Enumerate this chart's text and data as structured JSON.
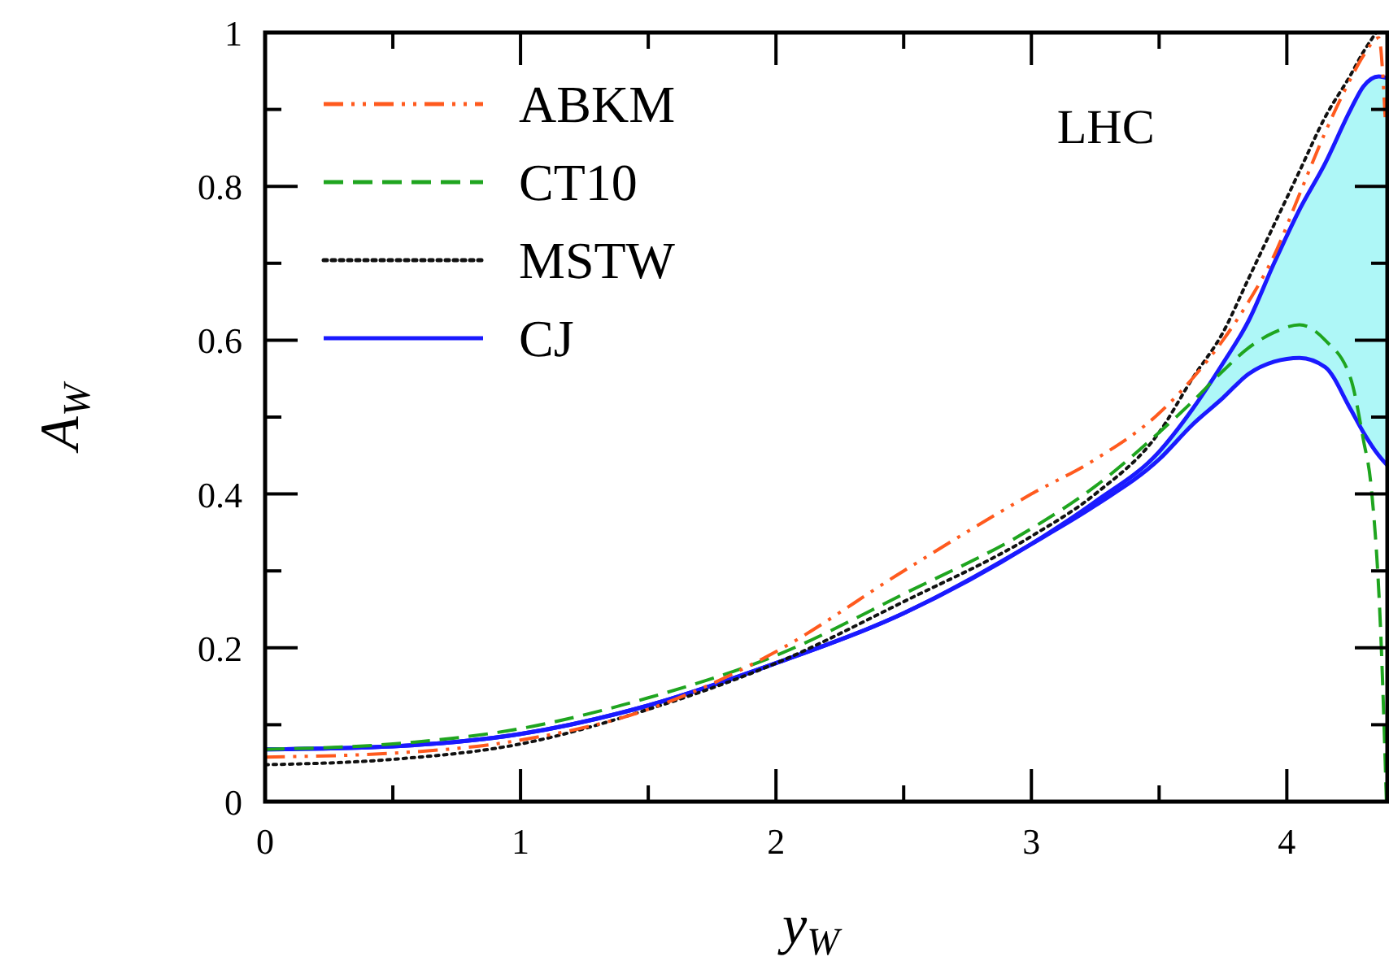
{
  "chart_data": {
    "type": "line",
    "xlabel": "y$_{W}$",
    "ylabel": "A$_{W}$",
    "annotations": [
      "LHC"
    ],
    "xlim": [
      0,
      4.4
    ],
    "ylim": [
      0,
      1
    ],
    "xticks": [
      0,
      {
        "value": 0.5,
        "label": null
      },
      1,
      {
        "value": 1.5,
        "label": null
      },
      2,
      {
        "value": 2.5,
        "label": null
      },
      3,
      {
        "value": 3.5,
        "label": null
      },
      4
    ],
    "yticks": [
      0,
      {
        "value": 0.1,
        "label": null
      },
      0.2,
      {
        "value": 0.3,
        "label": null
      },
      0.4,
      {
        "value": 0.5,
        "label": null
      },
      0.6,
      {
        "value": 0.7,
        "label": null
      },
      0.8,
      {
        "value": 0.9,
        "label": null
      },
      1
    ],
    "grid": false,
    "legend": "top left",
    "x": [
      0,
      0.5,
      1,
      1.5,
      2,
      2.5,
      3,
      3.25,
      3.5,
      3.63,
      3.75,
      3.85,
      3.95,
      4.05,
      4.15,
      4.25,
      4.3,
      4.36,
      4.4
    ],
    "series": [
      {
        "name": "ABKM",
        "color": "#ff5a1e",
        "line_style": "dashdot",
        "x": [
          0,
          0.5,
          1,
          1.5,
          2,
          2.5,
          3,
          3.25,
          3.5,
          3.63,
          3.75,
          3.85,
          3.95,
          4.05,
          4.15,
          4.25,
          4.3,
          4.36,
          4.385
        ],
        "values": [
          0.058,
          0.063,
          0.08,
          0.12,
          0.195,
          0.3,
          0.4,
          0.445,
          0.505,
          0.55,
          0.6,
          0.65,
          0.71,
          0.79,
          0.87,
          0.94,
          0.97,
          0.993,
          0.89
        ]
      },
      {
        "name": "CT10",
        "color": "#1fa51f",
        "line_style": "dashed",
        "x": [
          0,
          0.5,
          1,
          1.5,
          2,
          2.5,
          3,
          3.25,
          3.5,
          3.63,
          3.75,
          3.85,
          3.95,
          4.05,
          4.15,
          4.25,
          4.3,
          4.33,
          4.37,
          4.39
        ],
        "values": [
          0.068,
          0.075,
          0.095,
          0.135,
          0.19,
          0.27,
          0.355,
          0.41,
          0.48,
          0.52,
          0.56,
          0.59,
          0.61,
          0.62,
          0.6,
          0.55,
          0.47,
          0.41,
          0.2,
          0
        ]
      },
      {
        "name": "MSTW",
        "color": "#111111",
        "line_style": "dotted",
        "x": [
          0,
          0.5,
          1,
          1.5,
          2,
          2.5,
          3,
          3.25,
          3.5,
          3.63,
          3.75,
          3.85,
          3.95,
          4.05,
          4.15,
          4.25,
          4.3,
          4.35
        ],
        "values": [
          0.048,
          0.055,
          0.075,
          0.12,
          0.18,
          0.26,
          0.345,
          0.4,
          0.48,
          0.55,
          0.61,
          0.68,
          0.75,
          0.82,
          0.89,
          0.945,
          0.975,
          1.0
        ]
      },
      {
        "name": "CJ",
        "color": "#1a1aff",
        "line_style": "solid",
        "values": [
          0.068,
          0.072,
          0.088,
          0.125,
          0.18,
          0.245,
          0.335,
          0.39,
          0.455,
          0.51,
          0.57,
          0.625,
          0.7,
          0.77,
          0.83,
          0.9,
          0.93,
          0.943,
          0.94
        ],
        "upper": [
          0.068,
          0.072,
          0.088,
          0.125,
          0.18,
          0.245,
          0.335,
          0.39,
          0.455,
          0.51,
          0.57,
          0.625,
          0.7,
          0.77,
          0.83,
          0.9,
          0.93,
          0.943,
          0.94
        ],
        "lower": [
          0.068,
          0.072,
          0.088,
          0.125,
          0.18,
          0.245,
          0.335,
          0.385,
          0.445,
          0.49,
          0.525,
          0.556,
          0.572,
          0.577,
          0.565,
          0.51,
          0.48,
          0.45,
          0.435
        ]
      },
      {
        "color": "#1a1aff",
        "line_style": "solid",
        "values": [
          0.068,
          0.072,
          0.088,
          0.125,
          0.18,
          0.245,
          0.335,
          0.385,
          0.445,
          0.49,
          0.525,
          0.556,
          0.572,
          0.577,
          0.565,
          0.51,
          0.48,
          0.45,
          0.435
        ]
      }
    ]
  }
}
